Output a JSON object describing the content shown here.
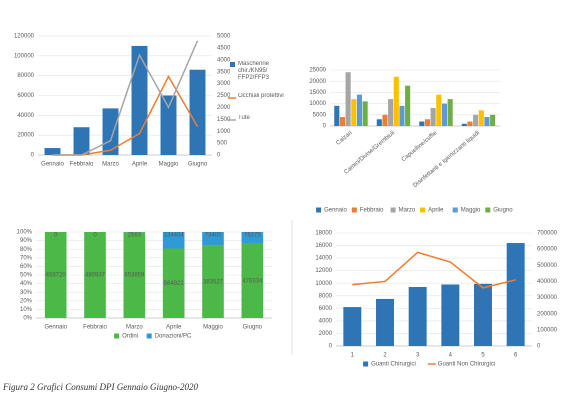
{
  "chart_data": [
    {
      "type": "combo",
      "categories": [
        "Gennaio",
        "Febbraio",
        "Marzo",
        "Aprile",
        "Maggio",
        "Giugno"
      ],
      "series": [
        {
          "name": "Mascherine chir./KN95/ FFP2/FFP3",
          "kind": "bar",
          "color": "#2e75b6",
          "values": [
            7000,
            28000,
            47000,
            110000,
            60000,
            86000
          ]
        },
        {
          "name": "Occhiali protettivi",
          "kind": "line",
          "axis": "y2",
          "color": "#ed7d31",
          "values": [
            0,
            0,
            200,
            900,
            3300,
            1200
          ]
        },
        {
          "name": "Tute",
          "kind": "line",
          "axis": "y2",
          "color": "#a5a5a5",
          "values": [
            0,
            0,
            600,
            4200,
            2000,
            4800
          ]
        }
      ],
      "ylim": [
        0,
        120000
      ],
      "yticks": [
        0,
        20000,
        40000,
        60000,
        80000,
        100000,
        120000
      ],
      "y2lim": [
        0,
        5000
      ],
      "y2ticks": [
        0,
        500,
        1000,
        1500,
        2000,
        2500,
        3000,
        3500,
        4000,
        4500,
        5000
      ],
      "grid": true,
      "legend": "right"
    },
    {
      "type": "bar",
      "categories": [
        "Calzari",
        "Camici/Divise/Grembiuli",
        "Capuelline/cuffie",
        "Disinfettanti e igienizzanti liquidi"
      ],
      "series": [
        {
          "name": "Gennaio",
          "color": "#2e75b6",
          "values": [
            9000,
            3000,
            2000,
            1000
          ]
        },
        {
          "name": "Febbraio",
          "color": "#ed7d31",
          "values": [
            4000,
            5000,
            3000,
            2000
          ]
        },
        {
          "name": "Marzo",
          "color": "#a5a5a5",
          "values": [
            24000,
            12000,
            8000,
            5000
          ]
        },
        {
          "name": "Aprile",
          "color": "#ffc000",
          "values": [
            12000,
            22000,
            14000,
            7000
          ]
        },
        {
          "name": "Maggio",
          "color": "#5b9bd5",
          "values": [
            14000,
            9000,
            10000,
            4000
          ]
        },
        {
          "name": "Giugno",
          "color": "#70ad47",
          "values": [
            11000,
            18000,
            12000,
            5000
          ]
        }
      ],
      "ylim": [
        0,
        25000
      ],
      "yticks": [
        0,
        5000,
        10000,
        15000,
        20000,
        25000
      ],
      "grid": true,
      "legend": "bottom"
    },
    {
      "type": "stacked_bar_100",
      "categories": [
        "Gennaio",
        "Febbraio",
        "Marzo",
        "Aprile",
        "Maggio",
        "Giugno"
      ],
      "series": [
        {
          "name": "Ordini",
          "color": "#4cb848",
          "values": [
            458720,
            480937,
            653859,
            564921,
            383527,
            476334
          ]
        },
        {
          "name": "Donazioni/PC",
          "color": "#2e9bd6",
          "values": [
            0,
            0,
            2563,
            134404,
            73405,
            76275
          ]
        }
      ],
      "ylim": [
        0,
        100
      ],
      "yticks": [
        {
          "value": 0,
          "label": "0%"
        },
        {
          "value": 10,
          "label": "10%"
        },
        {
          "value": 20,
          "label": "20%"
        },
        {
          "value": 30,
          "label": "30%"
        },
        {
          "value": 40,
          "label": "40%"
        },
        {
          "value": 50,
          "label": "50%"
        },
        {
          "value": 60,
          "label": "60%"
        },
        {
          "value": 70,
          "label": "70%"
        },
        {
          "value": 80,
          "label": "80%"
        },
        {
          "value": 90,
          "label": "90%"
        },
        {
          "value": 100,
          "label": "100%"
        }
      ],
      "grid": true,
      "legend": "bottom"
    },
    {
      "type": "combo",
      "categories": [
        "1",
        "2",
        "3",
        "4",
        "5",
        "6"
      ],
      "series": [
        {
          "name": "Guanti Chirurgici",
          "kind": "bar",
          "color": "#2e75b6",
          "values": [
            6200,
            7500,
            9400,
            9800,
            9900,
            16400
          ]
        },
        {
          "name": "Guanti Non Chirurgici",
          "kind": "line",
          "axis": "y2",
          "color": "#ed7d31",
          "values": [
            380000,
            400000,
            580000,
            520000,
            360000,
            410000
          ]
        }
      ],
      "ylim": [
        0,
        18000
      ],
      "yticks": [
        0,
        2000,
        4000,
        6000,
        8000,
        10000,
        12000,
        14000,
        16000,
        18000
      ],
      "y2lim": [
        0,
        700000
      ],
      "y2ticks": [
        0,
        100000,
        200000,
        300000,
        400000,
        500000,
        600000,
        700000
      ],
      "grid": true,
      "legend": "bottom"
    }
  ],
  "caption": "Figura 2 Grafici Consumi DPI Gennaio Giugno-2020"
}
